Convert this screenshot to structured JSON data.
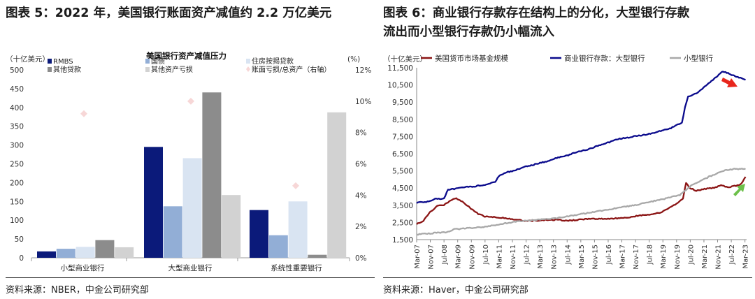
{
  "left": {
    "title": "图表 5：2022 年，美国银行账面资产减值约 2.2 万亿美元",
    "source": "资料来源：NBER，中金公司研究部"
  },
  "right": {
    "title_line1": "图表 6：商业银行存款存在结构上的分化，大型银行存款",
    "title_line2": "流出而小型银行存款仍小幅流入",
    "source": "资料来源：Haver，中金公司研究部"
  },
  "colors": {
    "rmbs": "#0b1a7a",
    "treasury": "#92aed6",
    "resi": "#d9e4f2",
    "other_loans": "#8c8c8c",
    "other_assets": "#d2d2d2",
    "ratio": "#f7d7d7",
    "mmf": "#8b1414",
    "large": "#0a0a8c",
    "small": "#a8a8a8",
    "arrow_down": "#e8261c",
    "arrow_up": "#6cc04a"
  },
  "chart_data": [
    {
      "type": "bar",
      "title": "美国银行资产减值压力",
      "ylabel_left": "（十亿美元）",
      "ylabel_right": "(%)",
      "ylim": [
        0,
        500
      ],
      "y_ticks": [
        0,
        50,
        100,
        150,
        200,
        250,
        300,
        350,
        400,
        450,
        500
      ],
      "ylim_right": [
        0,
        12
      ],
      "y_right_ticks": [
        "0%",
        "2%",
        "4%",
        "6%",
        "8%",
        "10%",
        "12%"
      ],
      "categories": [
        "小型商业银行",
        "大型商业银行",
        "系统性重要银行"
      ],
      "series": [
        {
          "name": "RMBS",
          "color_key": "rmbs",
          "values": [
            17,
            295,
            127
          ]
        },
        {
          "name": "国债",
          "color_key": "treasury",
          "values": [
            24,
            137,
            60
          ]
        },
        {
          "name": "住房按揭贷款",
          "color_key": "resi",
          "values": [
            29,
            265,
            150
          ]
        },
        {
          "name": "其他贷款",
          "color_key": "other_loans",
          "values": [
            47,
            440,
            8
          ]
        },
        {
          "name": "其他资产亏损",
          "color_key": "other_assets",
          "values": [
            28,
            167,
            387
          ]
        }
      ],
      "ratio_series": {
        "name": "账面亏损/总资产（右轴）",
        "color_key": "ratio",
        "axis": "right",
        "values": [
          9.2,
          10.0,
          4.6
        ]
      },
      "legend": [
        "RMBS",
        "国债",
        "住房按揭贷款",
        "其他贷款",
        "其他资产亏损",
        "账面亏损/总资产（右轴）"
      ]
    },
    {
      "type": "line",
      "ylabel": "（十亿美元）",
      "ylim": [
        1500,
        11500
      ],
      "y_ticks": [
        "1,500",
        "2,500",
        "3,500",
        "4,500",
        "5,500",
        "6,500",
        "7,500",
        "8,500",
        "9,500",
        "10,500",
        "11,500"
      ],
      "x_ticks": [
        "Mar-07",
        "Nov-07",
        "Jul-08",
        "Mar-09",
        "Nov-09",
        "Jul-10",
        "Mar-11",
        "Nov-11",
        "Jul-12",
        "Mar-13",
        "Nov-13",
        "Jul-14",
        "Mar-15",
        "Nov-15",
        "Jul-16",
        "Mar-17",
        "Nov-17",
        "Jul-18",
        "Mar-19",
        "Nov-19",
        "Jul-20",
        "Mar-21",
        "Nov-21",
        "Jul-22",
        "Mar-23"
      ],
      "x_time": {
        "start": 2007.17,
        "end": 2023.25
      },
      "legend": [
        "美国货币市场基金规模",
        "商业银行存款：大型银行",
        "小型银行"
      ],
      "series": [
        {
          "name": "美国货币市场基金规模",
          "color_key": "mmf",
          "points": [
            [
              2007.17,
              2400
            ],
            [
              2007.5,
              2600
            ],
            [
              2007.83,
              3100
            ],
            [
              2008.17,
              3450
            ],
            [
              2008.5,
              3500
            ],
            [
              2008.83,
              3800
            ],
            [
              2009.1,
              3900
            ],
            [
              2009.4,
              3700
            ],
            [
              2009.83,
              3300
            ],
            [
              2010.17,
              3000
            ],
            [
              2010.5,
              2850
            ],
            [
              2011.0,
              2800
            ],
            [
              2011.5,
              2750
            ],
            [
              2012.0,
              2650
            ],
            [
              2012.5,
              2600
            ],
            [
              2013.0,
              2600
            ],
            [
              2013.5,
              2650
            ],
            [
              2014.0,
              2650
            ],
            [
              2014.5,
              2600
            ],
            [
              2015.0,
              2650
            ],
            [
              2015.5,
              2700
            ],
            [
              2016.0,
              2700
            ],
            [
              2016.5,
              2700
            ],
            [
              2017.0,
              2750
            ],
            [
              2017.5,
              2800
            ],
            [
              2018.0,
              2900
            ],
            [
              2018.5,
              2950
            ],
            [
              2019.0,
              3050
            ],
            [
              2019.5,
              3350
            ],
            [
              2019.9,
              3650
            ],
            [
              2020.15,
              3900
            ],
            [
              2020.3,
              4800
            ],
            [
              2020.5,
              4500
            ],
            [
              2020.8,
              4350
            ],
            [
              2021.2,
              4450
            ],
            [
              2021.6,
              4500
            ],
            [
              2022.0,
              4650
            ],
            [
              2022.4,
              4550
            ],
            [
              2022.8,
              4650
            ],
            [
              2023.0,
              4750
            ],
            [
              2023.2,
              5150
            ]
          ]
        },
        {
          "name": "商业银行存款：大型银行",
          "color_key": "large",
          "points": [
            [
              2007.17,
              3650
            ],
            [
              2007.7,
              3700
            ],
            [
              2008.0,
              3850
            ],
            [
              2008.5,
              3900
            ],
            [
              2008.7,
              4400
            ],
            [
              2009.0,
              4450
            ],
            [
              2009.5,
              4550
            ],
            [
              2010.0,
              4600
            ],
            [
              2010.5,
              4700
            ],
            [
              2011.0,
              4850
            ],
            [
              2011.17,
              5200
            ],
            [
              2011.5,
              5400
            ],
            [
              2012.0,
              5550
            ],
            [
              2012.5,
              5750
            ],
            [
              2013.0,
              5900
            ],
            [
              2013.5,
              6050
            ],
            [
              2014.0,
              6250
            ],
            [
              2014.5,
              6400
            ],
            [
              2015.0,
              6600
            ],
            [
              2015.5,
              6750
            ],
            [
              2016.0,
              6950
            ],
            [
              2016.5,
              7150
            ],
            [
              2017.0,
              7350
            ],
            [
              2017.5,
              7450
            ],
            [
              2018.0,
              7550
            ],
            [
              2018.5,
              7650
            ],
            [
              2019.0,
              7800
            ],
            [
              2019.5,
              7950
            ],
            [
              2019.9,
              8200
            ],
            [
              2020.1,
              8300
            ],
            [
              2020.25,
              9200
            ],
            [
              2020.4,
              9800
            ],
            [
              2020.8,
              10000
            ],
            [
              2021.2,
              10400
            ],
            [
              2021.6,
              10800
            ],
            [
              2021.9,
              11100
            ],
            [
              2022.1,
              11300
            ],
            [
              2022.4,
              11150
            ],
            [
              2022.7,
              11000
            ],
            [
              2023.0,
              10900
            ],
            [
              2023.2,
              10800
            ]
          ]
        },
        {
          "name": "小型银行",
          "color_key": "small",
          "points": [
            [
              2007.17,
              1800
            ],
            [
              2007.7,
              1850
            ],
            [
              2008.2,
              1900
            ],
            [
              2008.7,
              1950
            ],
            [
              2009.0,
              2100
            ],
            [
              2009.5,
              2150
            ],
            [
              2010.0,
              2200
            ],
            [
              2010.5,
              2250
            ],
            [
              2011.0,
              2350
            ],
            [
              2011.5,
              2450
            ],
            [
              2012.0,
              2550
            ],
            [
              2012.5,
              2600
            ],
            [
              2013.0,
              2650
            ],
            [
              2013.5,
              2700
            ],
            [
              2014.0,
              2750
            ],
            [
              2014.5,
              2850
            ],
            [
              2015.0,
              2950
            ],
            [
              2015.5,
              3050
            ],
            [
              2016.0,
              3150
            ],
            [
              2016.5,
              3250
            ],
            [
              2017.0,
              3350
            ],
            [
              2017.5,
              3450
            ],
            [
              2018.0,
              3550
            ],
            [
              2018.5,
              3700
            ],
            [
              2019.0,
              3800
            ],
            [
              2019.5,
              3950
            ],
            [
              2020.0,
              4100
            ],
            [
              2020.3,
              4400
            ],
            [
              2020.6,
              4700
            ],
            [
              2021.0,
              4900
            ],
            [
              2021.4,
              5150
            ],
            [
              2021.8,
              5350
            ],
            [
              2022.2,
              5550
            ],
            [
              2022.6,
              5600
            ],
            [
              2022.9,
              5620
            ],
            [
              2023.2,
              5600
            ]
          ]
        }
      ]
    }
  ]
}
